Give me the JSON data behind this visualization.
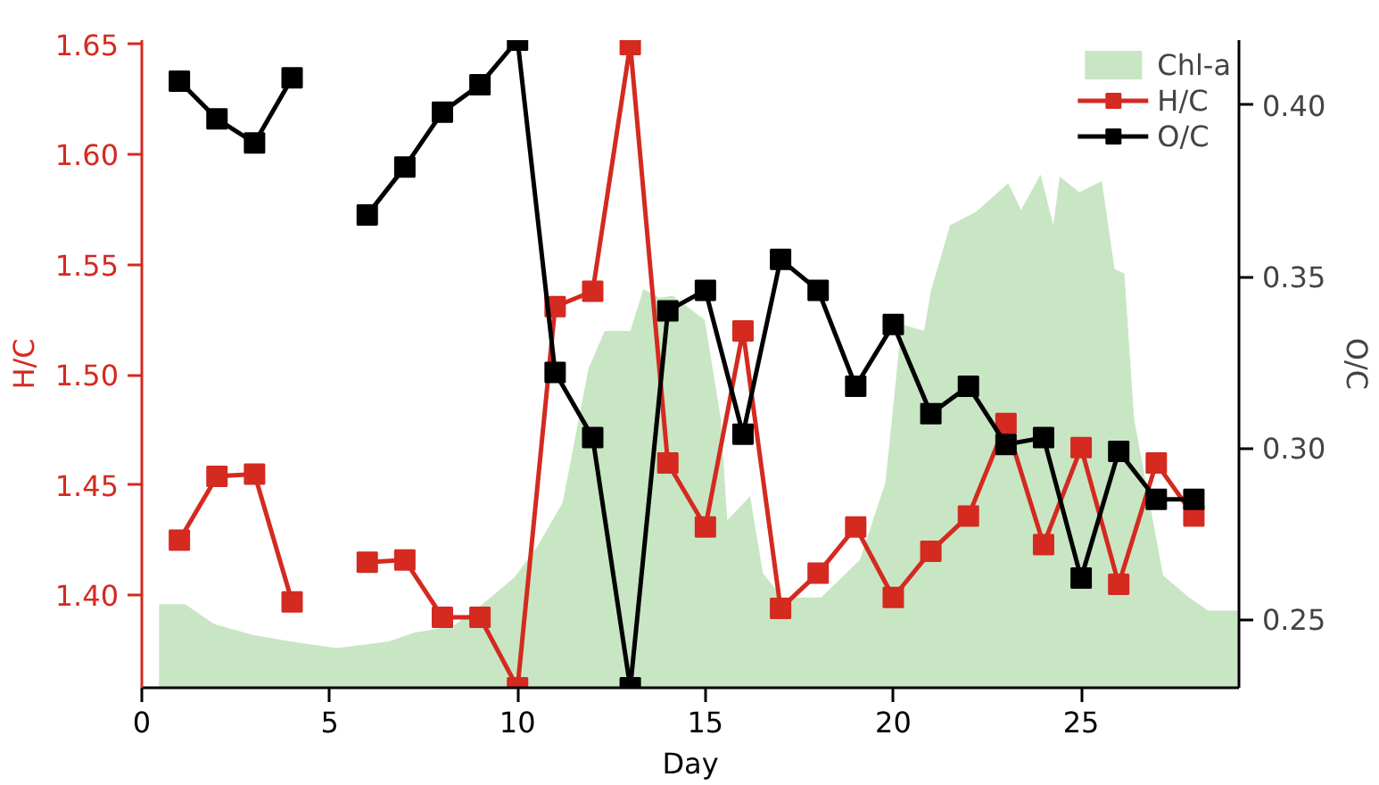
{
  "chart_data": {
    "type": "line",
    "xlabel": "Day",
    "ylabel": "H/C",
    "y2label": "O/C",
    "xlim": [
      0,
      29.2
    ],
    "xticks": [
      0,
      5,
      10,
      15,
      20,
      25
    ],
    "ylim": [
      1.358,
      1.652
    ],
    "yticks": [
      {
        "value": 1.4,
        "label": "1.40"
      },
      1.45,
      {
        "value": 1.5,
        "label": "1.50"
      },
      1.55,
      {
        "value": 1.6,
        "label": "1.60"
      },
      1.65
    ],
    "y2lim": [
      0.23,
      0.419
    ],
    "y2ticks": [
      0.25,
      {
        "value": 0.3,
        "label": "0.30"
      },
      0.35,
      {
        "value": 0.4,
        "label": "0.40"
      }
    ],
    "grid": false,
    "legend": "top right",
    "line_style": "solid",
    "series": [
      {
        "name": "Chl-a",
        "type": "area",
        "color": "#c8e6c3",
        "x": [
          0.46,
          1.15,
          1.92,
          2.95,
          3.98,
          5.19,
          6.56,
          7.25,
          8.28,
          9.14,
          9.91,
          10.52,
          11.2,
          11.89,
          12.32,
          13.0,
          13.35,
          13.78,
          14.12,
          14.98,
          15.41,
          15.58,
          16.19,
          16.53,
          17.04,
          18.08,
          19.11,
          19.79,
          20.22,
          20.82,
          21.0,
          21.51,
          22.2,
          23.06,
          23.4,
          23.92,
          24.26,
          24.43,
          24.95,
          25.55,
          25.89,
          26.15,
          26.41,
          27.18,
          27.87,
          28.38,
          29.18
        ],
        "values": [
          1.396,
          1.396,
          1.387,
          1.382,
          1.379,
          1.376,
          1.379,
          1.383,
          1.386,
          1.397,
          1.408,
          1.422,
          1.442,
          1.503,
          1.52,
          1.52,
          1.539,
          1.535,
          1.536,
          1.525,
          1.48,
          1.434,
          1.445,
          1.41,
          1.399,
          1.399,
          1.416,
          1.451,
          1.523,
          1.52,
          1.538,
          1.568,
          1.574,
          1.587,
          1.575,
          1.591,
          1.568,
          1.59,
          1.583,
          1.588,
          1.548,
          1.546,
          1.48,
          1.409,
          1.399,
          1.393,
          1.393
        ]
      },
      {
        "name": "H/C",
        "marker": "square",
        "color": "#d42a20",
        "x": [
          1,
          2,
          3,
          4,
          5,
          6,
          7,
          8,
          9,
          10,
          11,
          12,
          13,
          14,
          15,
          16,
          17,
          18,
          19,
          20,
          21,
          22,
          23,
          24,
          25,
          26,
          27,
          28
        ],
        "values": [
          1.425,
          1.454,
          1.455,
          1.397,
          null,
          1.415,
          1.416,
          1.39,
          1.39,
          1.358,
          1.531,
          1.538,
          1.65,
          1.46,
          1.431,
          1.52,
          1.394,
          1.41,
          1.431,
          1.399,
          1.42,
          1.436,
          1.478,
          1.423,
          1.467,
          1.405,
          1.46,
          1.436
        ]
      },
      {
        "name": "O/C",
        "marker": "square",
        "axis": "y2",
        "color": "#000000",
        "x": [
          1,
          2,
          3,
          4,
          5,
          6,
          7,
          8,
          9,
          10,
          11,
          12,
          13,
          14,
          15,
          16,
          17,
          18,
          19,
          20,
          21,
          22,
          23,
          24,
          25,
          26,
          27,
          28
        ],
        "values": [
          0.407,
          0.396,
          0.389,
          0.408,
          null,
          0.368,
          0.382,
          0.398,
          0.406,
          0.419,
          0.322,
          0.303,
          0.23,
          0.34,
          0.346,
          0.304,
          0.355,
          0.346,
          0.318,
          0.336,
          0.31,
          0.318,
          0.301,
          0.303,
          0.262,
          0.299,
          0.285,
          0.285
        ]
      }
    ]
  }
}
